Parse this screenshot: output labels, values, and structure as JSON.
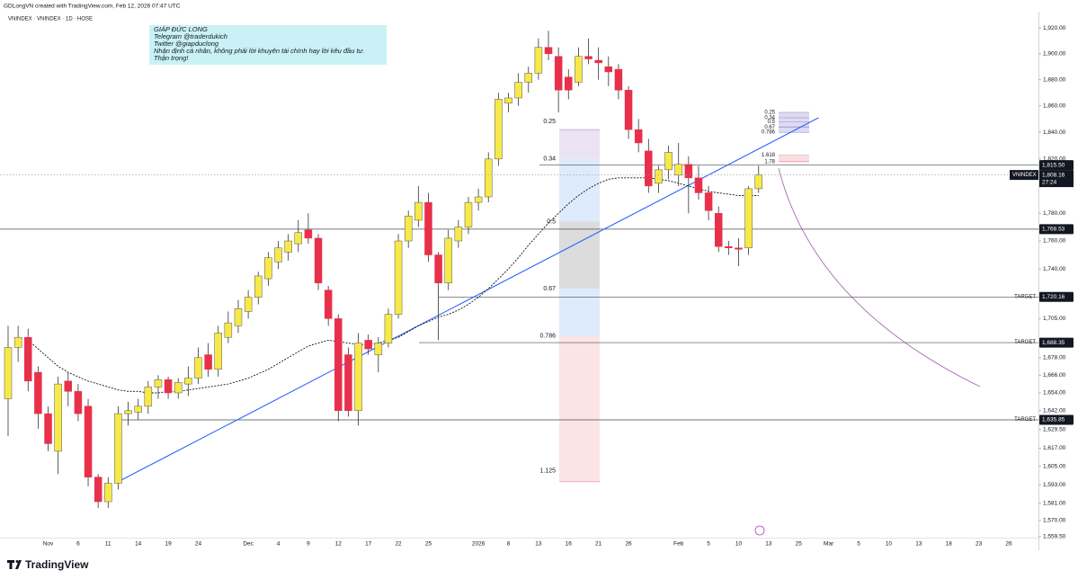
{
  "header": {
    "credit": "GDLongVN created with TradingView.com, Feb 12, 2026 07:47 UTC",
    "logo": "TradingView"
  },
  "chart_data": {
    "type": "candlestick",
    "title": "VNINDEX · VNINDEX · 1D · HOSE",
    "log_scale": true,
    "up_color": "#f7e94a",
    "down_color": "#e8304a",
    "wick_color": "#333333",
    "categories": [
      null,
      null,
      null,
      null,
      "Nov",
      null,
      null,
      "6",
      null,
      null,
      "11",
      null,
      null,
      "14",
      null,
      null,
      "19",
      null,
      null,
      "24",
      null,
      null,
      null,
      null,
      "Dec",
      null,
      null,
      "4",
      null,
      null,
      "9",
      null,
      null,
      "12",
      null,
      null,
      "17",
      null,
      null,
      "22",
      null,
      null,
      "25",
      null,
      null,
      null,
      null,
      "2026",
      null,
      null,
      "8",
      null,
      null,
      "13",
      null,
      null,
      "16",
      null,
      null,
      "21",
      null,
      null,
      "26",
      null,
      null,
      null,
      null,
      "Feb",
      null,
      null,
      "5",
      null,
      null,
      "10",
      null,
      null
    ],
    "open": [
      1650,
      1685,
      1692,
      1668,
      1640,
      1615,
      1662,
      1655,
      1645,
      1598,
      1582,
      1594,
      1640,
      1641,
      1645,
      1658,
      1663,
      1654,
      1660,
      1664,
      1680,
      1670,
      1692,
      1700,
      1710,
      1720,
      1733,
      1745,
      1752,
      1758,
      1768,
      1762,
      1725,
      1705,
      1680,
      1642,
      1690,
      1680,
      1688,
      1708,
      1760,
      1775,
      1788,
      1750,
      1730,
      1760,
      1770,
      1788,
      1792,
      1820,
      1862,
      1866,
      1878,
      1885,
      1905,
      1898,
      1882,
      1878,
      1898,
      1895,
      1890,
      1888,
      1872,
      1842,
      1826,
      1802,
      1812,
      1808,
      1816,
      1806,
      1795,
      1780,
      1756,
      1755,
      1755,
      1798
    ],
    "high": [
      1700,
      1700,
      1698,
      1672,
      1645,
      1665,
      1668,
      1660,
      1650,
      1600,
      1598,
      1645,
      1648,
      1650,
      1662,
      1666,
      1665,
      1664,
      1672,
      1685,
      1688,
      1700,
      1710,
      1718,
      1725,
      1738,
      1752,
      1760,
      1765,
      1775,
      1780,
      1765,
      1728,
      1708,
      1685,
      1695,
      1694,
      1692,
      1712,
      1765,
      1782,
      1800,
      1795,
      1752,
      1768,
      1775,
      1792,
      1798,
      1825,
      1870,
      1870,
      1885,
      1890,
      1912,
      1918,
      1905,
      1888,
      1905,
      1912,
      1905,
      1898,
      1892,
      1875,
      1850,
      1835,
      1815,
      1830,
      1832,
      1822,
      1815,
      1800,
      1785,
      1760,
      1762,
      1800,
      1815
    ],
    "low": [
      1625,
      1675,
      1655,
      1630,
      1615,
      1600,
      1645,
      1635,
      1592,
      1578,
      1578,
      1590,
      1632,
      1636,
      1640,
      1650,
      1650,
      1650,
      1652,
      1660,
      1665,
      1665,
      1688,
      1695,
      1705,
      1715,
      1728,
      1740,
      1746,
      1752,
      1758,
      1725,
      1700,
      1635,
      1638,
      1632,
      1680,
      1668,
      1685,
      1705,
      1755,
      1770,
      1745,
      1690,
      1725,
      1755,
      1765,
      1782,
      1788,
      1815,
      1855,
      1860,
      1870,
      1880,
      1895,
      1855,
      1865,
      1875,
      1892,
      1880,
      1875,
      1865,
      1835,
      1825,
      1795,
      1795,
      1805,
      1800,
      1780,
      1790,
      1775,
      1752,
      1750,
      1742,
      1750,
      1795
    ],
    "close": [
      1685,
      1692,
      1662,
      1640,
      1620,
      1660,
      1655,
      1640,
      1598,
      1582,
      1594,
      1640,
      1642,
      1645,
      1658,
      1663,
      1654,
      1661,
      1664,
      1678,
      1670,
      1695,
      1702,
      1712,
      1720,
      1735,
      1748,
      1755,
      1760,
      1766,
      1762,
      1730,
      1705,
      1642,
      1642,
      1688,
      1684,
      1688,
      1708,
      1760,
      1778,
      1788,
      1750,
      1730,
      1762,
      1770,
      1788,
      1792,
      1820,
      1865,
      1866,
      1878,
      1885,
      1905,
      1900,
      1872,
      1872,
      1898,
      1896,
      1893,
      1886,
      1872,
      1842,
      1832,
      1800,
      1812,
      1825,
      1816,
      1806,
      1795,
      1782,
      1756,
      1755,
      1754,
      1798,
      1808.16
    ],
    "moving_average": {
      "color": "#111111",
      "values": [
        null,
        null,
        1690,
        1684,
        1678,
        1672,
        1668,
        1665,
        1662,
        1660,
        1658,
        1656,
        1655,
        1655,
        1654,
        1654,
        1655,
        1655,
        1656,
        1657,
        1658,
        1659,
        1660,
        1662,
        1664,
        1667,
        1670,
        1674,
        1678,
        1682,
        1686,
        1688,
        1690,
        1689,
        1688,
        1687,
        1687,
        1688,
        1690,
        1692,
        1696,
        1700,
        1703,
        1706,
        1708,
        1711,
        1715,
        1720,
        1726,
        1733,
        1740,
        1748,
        1757,
        1765,
        1773,
        1780,
        1787,
        1793,
        1798,
        1802,
        1805,
        1806,
        1806,
        1806,
        1806,
        1805,
        1804,
        1802,
        1800,
        1798,
        1796,
        1795,
        1794,
        1793,
        1793,
        1793
      ]
    },
    "trendline": {
      "color": "#2962ff",
      "values": [
        1595,
        1851
      ]
    },
    "ylim": [
      1559.5,
      1933
    ],
    "yticks": [
      {
        "value": 1920,
        "label": "1,920.00"
      },
      {
        "value": 1900,
        "label": "1,900.00"
      },
      {
        "value": 1880,
        "label": "1,880.00"
      },
      {
        "value": 1860,
        "label": "1,860.00"
      },
      {
        "value": 1840,
        "label": "1,840.00"
      },
      {
        "value": 1820,
        "label": "1,820.00"
      },
      {
        "value": 1780,
        "label": "1,780.00"
      },
      {
        "value": 1760,
        "label": "1,760.00"
      },
      {
        "value": 1740,
        "label": "1,740.00"
      },
      {
        "value": 1705,
        "label": "1,705.00"
      },
      {
        "value": 1678,
        "label": "1,678.00"
      },
      {
        "value": 1666,
        "label": "1,666.00"
      },
      {
        "value": 1654,
        "label": "1,654.00"
      },
      {
        "value": 1642,
        "label": "1,642.00"
      },
      {
        "value": 1629.5,
        "label": "1,629.50"
      },
      {
        "value": 1617,
        "label": "1,617.00"
      },
      {
        "value": 1605,
        "label": "1,605.00"
      },
      {
        "value": 1593,
        "label": "1,593.00"
      },
      {
        "value": 1581,
        "label": "1,581.00"
      },
      {
        "value": 1570,
        "label": "1,570.00"
      },
      {
        "value": 1559.5,
        "label": "1,559.50"
      }
    ],
    "x_labels_ahead": [
      "13",
      "25",
      "Mar",
      "5",
      "10",
      "13",
      "18",
      "23",
      "26"
    ],
    "last_price": {
      "symbol": "VNINDEX",
      "value": 1808.16,
      "label": "1,808.16",
      "countdown": "27:24"
    },
    "price_lines": [
      {
        "value": 1815.5,
        "label": "1,815.50"
      },
      {
        "value": 1768.53,
        "label": "1,768.53"
      },
      {
        "value": 1720.16,
        "label": "1,720.16",
        "note": "TARGET"
      },
      {
        "value": 1688.35,
        "label": "1,688.35",
        "note": "TARGET"
      },
      {
        "value": 1635.85,
        "label": "1,635.85",
        "note": "TARGET"
      }
    ],
    "fib": {
      "top": 1842,
      "bottom": 1595,
      "colors": [
        "#e6dcf0",
        "#d6e6fb",
        "#d3d3d3",
        "#d6e6fb",
        "#fbdde0"
      ],
      "levels": [
        {
          "value": 1848,
          "label": "0.25",
          "color": "#8a8a8a"
        },
        {
          "value": 1820,
          "label": "0.34",
          "color": "#5d6b8a"
        },
        {
          "value": 1774,
          "label": "0.5",
          "color": "#4a7bd0"
        },
        {
          "value": 1726,
          "label": "0.67",
          "color": "#111111"
        },
        {
          "value": 1693,
          "label": "0.786",
          "color": "#3f6fd0"
        },
        {
          "value": 1602,
          "label": "1.125",
          "color": "#d0405a"
        }
      ]
    },
    "fib_small": {
      "levels": [
        {
          "value": 1855,
          "label": "0.25",
          "color": "#8a8a8a"
        },
        {
          "value": 1851,
          "label": "0.34",
          "color": "#5d6b8a"
        },
        {
          "value": 1848,
          "label": "0.5",
          "color": "#4a7bd0"
        },
        {
          "value": 1844,
          "label": "0.67",
          "color": "#111111"
        },
        {
          "value": 1840,
          "label": "0.786",
          "color": "#3f6fd0"
        },
        {
          "value": 1823,
          "label": "1.618",
          "color": "#9ccc9c"
        },
        {
          "value": 1818,
          "label": "1.78",
          "color": "#d0405a"
        }
      ]
    },
    "note": {
      "lines": [
        "GIÁP ĐỨC LONG",
        "Telegram @traderdukich",
        "Twitter @giapduclong",
        "Nhận định cá nhân, không phải lời khuyên tài chính hay lời kêu đầu tư.",
        "Thận trọng!"
      ]
    }
  }
}
